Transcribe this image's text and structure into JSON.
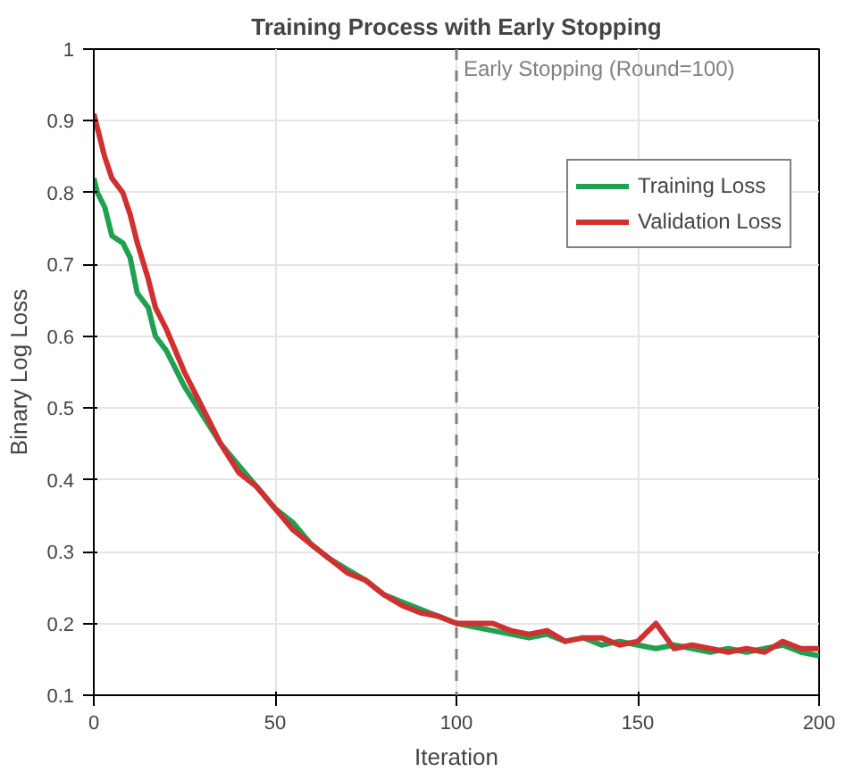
{
  "chart_data": {
    "type": "line",
    "title": "Training Process with Early Stopping",
    "xlabel": "Iteration",
    "ylabel": "Binary Log Loss",
    "x": [
      0,
      1,
      3,
      5,
      8,
      10,
      12,
      15,
      17,
      20,
      25,
      30,
      35,
      40,
      45,
      50,
      55,
      60,
      65,
      70,
      75,
      80,
      85,
      90,
      95,
      100,
      105,
      110,
      115,
      120,
      125,
      130,
      135,
      140,
      145,
      150,
      155,
      160,
      165,
      170,
      175,
      180,
      185,
      190,
      195,
      200
    ],
    "series": [
      {
        "name": "Training Loss",
        "color": "#20a050",
        "values": [
          0.82,
          0.8,
          0.78,
          0.74,
          0.73,
          0.71,
          0.66,
          0.64,
          0.6,
          0.58,
          0.53,
          0.49,
          0.45,
          0.42,
          0.39,
          0.36,
          0.34,
          0.31,
          0.29,
          0.275,
          0.26,
          0.24,
          0.23,
          0.22,
          0.21,
          0.2,
          0.195,
          0.19,
          0.185,
          0.18,
          0.185,
          0.175,
          0.18,
          0.17,
          0.175,
          0.17,
          0.165,
          0.17,
          0.165,
          0.16,
          0.165,
          0.16,
          0.165,
          0.17,
          0.16,
          0.155
        ]
      },
      {
        "name": "Validation Loss",
        "color": "#d03030",
        "values": [
          0.91,
          0.89,
          0.85,
          0.82,
          0.8,
          0.77,
          0.73,
          0.68,
          0.64,
          0.61,
          0.55,
          0.5,
          0.45,
          0.41,
          0.39,
          0.36,
          0.33,
          0.31,
          0.29,
          0.27,
          0.26,
          0.24,
          0.225,
          0.215,
          0.21,
          0.2,
          0.2,
          0.2,
          0.19,
          0.185,
          0.19,
          0.175,
          0.18,
          0.18,
          0.17,
          0.175,
          0.2,
          0.165,
          0.17,
          0.165,
          0.16,
          0.165,
          0.16,
          0.175,
          0.165,
          0.165
        ]
      }
    ],
    "xlim": [
      0,
      200
    ],
    "xticks": [
      0,
      50,
      100,
      150,
      200
    ],
    "ylim": [
      0.1,
      1
    ],
    "yticks": [
      0.1,
      0.2,
      0.3,
      0.4,
      0.5,
      0.6,
      0.7,
      0.8,
      0.9,
      1
    ],
    "ref_lines": [
      {
        "axis": "x",
        "value": 100,
        "label": "Early Stopping (Round=100)",
        "color": "#808080",
        "line_style": "dashed"
      }
    ],
    "grid": true,
    "legend": "top right",
    "line_style": "solid"
  }
}
